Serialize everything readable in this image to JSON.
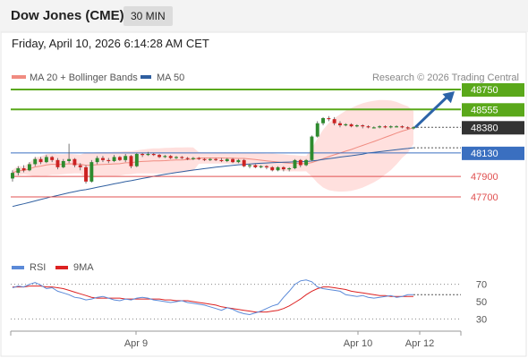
{
  "header": {
    "instrument": "Dow Jones (CME)",
    "timeframe": "30 MIN"
  },
  "timestamp": "Friday, April 10, 2026 6:14:28 AM CET",
  "credit": "Research © 2026 Trading Central",
  "colors": {
    "up": "#2e8b2e",
    "down": "#cc2222",
    "resistance": "#5aa81a",
    "support": "#e05050",
    "pivot": "#3a6fc0",
    "price": "#333333",
    "bollinger": "#ffd0cc",
    "ma20": "#f08b80",
    "ma50": "#2f5fa0",
    "rsi": "#5b8ad8",
    "rsi_ma": "#dd2222",
    "arrow": "#2c63a8"
  },
  "chart_data": [
    {
      "type": "candlestick",
      "legend": [
        {
          "label": "MA 20 + Bollinger Bands",
          "color": "#f08b80"
        },
        {
          "label": "MA 50",
          "color": "#2f5fa0"
        }
      ],
      "ylim": [
        47400,
        48950
      ],
      "levels": [
        {
          "label": "48750",
          "value": 48750,
          "kind": "resistance"
        },
        {
          "label": "48555",
          "value": 48555,
          "kind": "resistance"
        },
        {
          "label": "48380",
          "value": 48380,
          "kind": "price"
        },
        {
          "label": "48130",
          "value": 48130,
          "kind": "pivot"
        },
        {
          "label": "47900",
          "value": 47900,
          "kind": "support"
        },
        {
          "label": "47700",
          "value": 47700,
          "kind": "support"
        }
      ],
      "arrow": {
        "from": 48380,
        "to": 48750
      },
      "candles": [
        [
          47880,
          47935,
          47850,
          47960
        ],
        [
          47935,
          47980,
          47910,
          48000
        ],
        [
          47980,
          47960,
          47940,
          48010
        ],
        [
          47960,
          48020,
          47950,
          48040
        ],
        [
          48020,
          48070,
          48000,
          48090
        ],
        [
          48070,
          48040,
          48020,
          48090
        ],
        [
          48040,
          48090,
          48030,
          48110
        ],
        [
          48090,
          48060,
          48040,
          48100
        ],
        [
          48060,
          47990,
          47970,
          48080
        ],
        [
          47990,
          48050,
          47980,
          48070
        ],
        [
          48050,
          48070,
          48030,
          48220
        ],
        [
          48070,
          48010,
          47990,
          48080
        ],
        [
          48010,
          47990,
          47960,
          48030
        ],
        [
          47990,
          47850,
          47830,
          48010
        ],
        [
          47850,
          48040,
          47840,
          48060
        ],
        [
          48040,
          48080,
          48020,
          48100
        ],
        [
          48080,
          48060,
          48040,
          48100
        ],
        [
          48060,
          48050,
          48030,
          48080
        ],
        [
          48050,
          48090,
          48040,
          48110
        ],
        [
          48090,
          48060,
          48050,
          48100
        ],
        [
          48060,
          48100,
          48040,
          48120
        ],
        [
          48100,
          48000,
          47980,
          48110
        ],
        [
          48000,
          48120,
          47990,
          48130
        ],
        [
          48120,
          48110,
          48090,
          48130
        ],
        [
          48110,
          48120,
          48100,
          48140
        ],
        [
          48120,
          48110,
          48100,
          48130
        ],
        [
          48110,
          48090,
          48080,
          48120
        ],
        [
          48090,
          48100,
          48080,
          48110
        ],
        [
          48100,
          48080,
          48070,
          48110
        ],
        [
          48080,
          48090,
          48070,
          48100
        ],
        [
          48090,
          48080,
          48070,
          48100
        ],
        [
          48080,
          48070,
          48060,
          48090
        ],
        [
          48070,
          48080,
          48060,
          48090
        ],
        [
          48080,
          48070,
          48060,
          48090
        ],
        [
          48070,
          48060,
          48050,
          48080
        ],
        [
          48060,
          48070,
          48050,
          48080
        ],
        [
          48070,
          48060,
          48050,
          48080
        ],
        [
          48060,
          48050,
          48040,
          48080
        ],
        [
          48050,
          48070,
          48040,
          48080
        ],
        [
          48070,
          48040,
          48030,
          48080
        ],
        [
          48040,
          48060,
          48030,
          48070
        ],
        [
          48060,
          48000,
          47990,
          48070
        ],
        [
          48000,
          48010,
          47980,
          48020
        ],
        [
          48010,
          47990,
          47980,
          48020
        ],
        [
          47990,
          48000,
          47980,
          48010
        ],
        [
          48000,
          47990,
          47970,
          48010
        ],
        [
          47990,
          47960,
          47950,
          48000
        ],
        [
          47960,
          47990,
          47950,
          48000
        ],
        [
          47990,
          47970,
          47950,
          48000
        ],
        [
          47970,
          47980,
          47950,
          47990
        ],
        [
          47980,
          48060,
          47970,
          48070
        ],
        [
          48060,
          48010,
          47990,
          48070
        ],
        [
          48010,
          48060,
          48000,
          48070
        ],
        [
          48060,
          48290,
          48050,
          48300
        ],
        [
          48290,
          48420,
          48280,
          48440
        ],
        [
          48420,
          48470,
          48400,
          48480
        ],
        [
          48470,
          48460,
          48440,
          48490
        ],
        [
          48460,
          48420,
          48400,
          48480
        ],
        [
          48420,
          48400,
          48380,
          48440
        ],
        [
          48400,
          48410,
          48390,
          48420
        ],
        [
          48410,
          48390,
          48380,
          48420
        ],
        [
          48390,
          48400,
          48380,
          48410
        ],
        [
          48400,
          48390,
          48370,
          48410
        ],
        [
          48390,
          48380,
          48370,
          48400
        ],
        [
          48380,
          48380,
          48370,
          48390
        ],
        [
          48380,
          48390,
          48370,
          48400
        ],
        [
          48390,
          48380,
          48370,
          48400
        ],
        [
          48380,
          48390,
          48370,
          48400
        ],
        [
          48390,
          48390,
          48380,
          48400
        ],
        [
          48390,
          48380,
          48370,
          48400
        ],
        [
          48380,
          48370,
          48360,
          48390
        ],
        [
          48370,
          48380,
          48360,
          48390
        ]
      ]
    },
    {
      "type": "line",
      "legend": [
        {
          "label": "RSI",
          "color": "#5b8ad8"
        },
        {
          "label": "9MA",
          "color": "#dd2222"
        }
      ],
      "ylim": [
        20,
        80
      ],
      "ticks": [
        70,
        50,
        30
      ],
      "rsi": [
        66,
        68,
        67,
        70,
        72,
        69,
        65,
        66,
        62,
        60,
        58,
        55,
        54,
        52,
        53,
        55,
        56,
        54,
        52,
        51,
        53,
        52,
        54,
        55,
        54,
        52,
        51,
        50,
        49,
        50,
        51,
        49,
        48,
        47,
        46,
        44,
        42,
        40,
        43,
        41,
        38,
        36,
        35,
        37,
        39,
        42,
        45,
        47,
        55,
        62,
        70,
        74,
        75,
        73,
        67,
        65,
        64,
        63,
        62,
        58,
        57,
        56,
        57,
        55,
        54,
        55,
        56,
        57,
        55,
        56,
        58,
        58
      ],
      "rsi_ma": [
        67,
        67,
        67,
        68,
        68,
        68,
        67,
        67,
        66,
        65,
        63,
        61,
        59,
        57,
        55,
        54,
        54,
        54,
        54,
        54,
        53,
        53,
        53,
        53,
        53,
        53,
        53,
        52,
        52,
        51,
        51,
        51,
        50,
        49,
        48,
        47,
        46,
        44,
        43,
        42,
        41,
        40,
        39,
        38,
        38,
        38,
        39,
        40,
        42,
        45,
        49,
        53,
        58,
        62,
        65,
        67,
        67,
        66,
        65,
        64,
        62,
        61,
        60,
        59,
        58,
        57,
        57,
        56,
        56,
        56,
        56,
        56
      ]
    }
  ],
  "x_axis": {
    "ticks": [
      "Apr 9",
      "Apr 10",
      "Apr 12"
    ]
  }
}
